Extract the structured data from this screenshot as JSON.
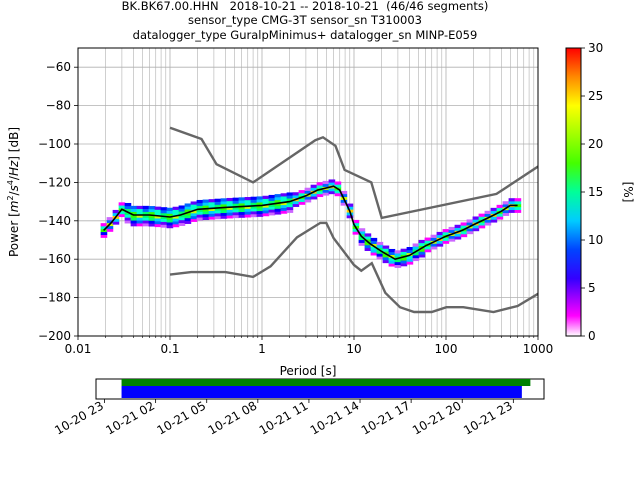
{
  "chart_data": {
    "type": "heatmap",
    "title_lines": [
      "BK.BK67.00.HHN   2018-10-21 -- 2018-10-21  (46/46 segments)",
      "sensor_type CMG-3T sensor_sn T310003",
      "datalogger_type GuralpMinimus+ datalogger_sn MINP-E059"
    ],
    "xlabel": "Period [s]",
    "ylabel_parts": [
      "Power [",
      "m",
      "2",
      "/",
      "s",
      "4",
      "/",
      "Hz",
      "] [dB]"
    ],
    "xscale": "log",
    "xlim": [
      0.01,
      1000
    ],
    "ylim": [
      -200,
      -50
    ],
    "x_ticks": [
      0.01,
      0.1,
      1,
      10,
      100,
      1000
    ],
    "x_tick_labels": [
      "0.01",
      "0.1",
      "1",
      "10",
      "100",
      "1000"
    ],
    "y_ticks": [
      -200,
      -180,
      -160,
      -140,
      -120,
      -100,
      -80,
      -60
    ],
    "y_tick_labels": [
      "−200",
      "−180",
      "−160",
      "−140",
      "−120",
      "−100",
      "−80",
      "−60"
    ],
    "grid": true,
    "colorbar": {
      "label": "[%]",
      "range": [
        0,
        30
      ],
      "ticks": [
        0,
        5,
        10,
        15,
        20,
        25,
        30
      ],
      "tick_labels": [
        "0",
        "5",
        "10",
        "15",
        "20",
        "25",
        "30"
      ]
    },
    "mode_line": [
      [
        0.019,
        -145
      ],
      [
        0.023,
        -141
      ],
      [
        0.03,
        -134
      ],
      [
        0.04,
        -137
      ],
      [
        0.06,
        -137
      ],
      [
        0.1,
        -138
      ],
      [
        0.13,
        -137
      ],
      [
        0.2,
        -134
      ],
      [
        0.4,
        -133
      ],
      [
        1,
        -132
      ],
      [
        2,
        -130
      ],
      [
        3,
        -127
      ],
      [
        4,
        -124
      ],
      [
        6,
        -122
      ],
      [
        7,
        -124
      ],
      [
        9,
        -135
      ],
      [
        10,
        -142
      ],
      [
        12,
        -148
      ],
      [
        15,
        -152
      ],
      [
        20,
        -156
      ],
      [
        28,
        -160
      ],
      [
        40,
        -158
      ],
      [
        60,
        -153
      ],
      [
        100,
        -148
      ],
      [
        150,
        -145
      ],
      [
        200,
        -142
      ],
      [
        300,
        -138
      ],
      [
        400,
        -135
      ],
      [
        500,
        -132
      ],
      [
        600,
        -132
      ]
    ],
    "noise_model_high": [
      [
        0.1,
        -91.5
      ],
      [
        0.22,
        -97.4
      ],
      [
        0.32,
        -110.5
      ],
      [
        0.8,
        -120
      ],
      [
        3.8,
        -98
      ],
      [
        4.6,
        -96.5
      ],
      [
        6.3,
        -101
      ],
      [
        7.9,
        -113.5
      ],
      [
        15.4,
        -120
      ],
      [
        20,
        -138.5
      ],
      [
        354,
        -126
      ],
      [
        1000,
        -111.7
      ]
    ],
    "noise_model_low": [
      [
        0.1,
        -168
      ],
      [
        0.17,
        -166.7
      ],
      [
        0.4,
        -166.7
      ],
      [
        0.8,
        -169.2
      ],
      [
        1.24,
        -163.7
      ],
      [
        2.4,
        -148.6
      ],
      [
        4.3,
        -141.1
      ],
      [
        5,
        -141.1
      ],
      [
        6,
        -149
      ],
      [
        10,
        -163
      ],
      [
        12,
        -166
      ],
      [
        15.6,
        -162.1
      ],
      [
        21.9,
        -177.5
      ],
      [
        31.6,
        -185
      ],
      [
        45,
        -187.5
      ],
      [
        70,
        -187.5
      ],
      [
        101,
        -185
      ],
      [
        154,
        -185
      ],
      [
        328,
        -187.5
      ],
      [
        600,
        -184.4
      ],
      [
        1000,
        -178
      ]
    ],
    "timeline": {
      "tick_labels": [
        "10-20 23",
        "10-21 02",
        "10-21 05",
        "10-21 08",
        "10-21 11",
        "10-21 14",
        "10-21 17",
        "10-21 20",
        "10-21 23"
      ],
      "range_hours": [
        -1.5,
        24.8
      ],
      "data_span_hours": [
        0.0,
        23.5
      ],
      "used_span_hours": [
        0.0,
        24.0
      ],
      "data_color": "#0000ff",
      "used_color": "#008000"
    },
    "colors": {
      "mode_line": "#000000",
      "noise_model": "#666666",
      "grid": "#b0b0b0"
    }
  }
}
